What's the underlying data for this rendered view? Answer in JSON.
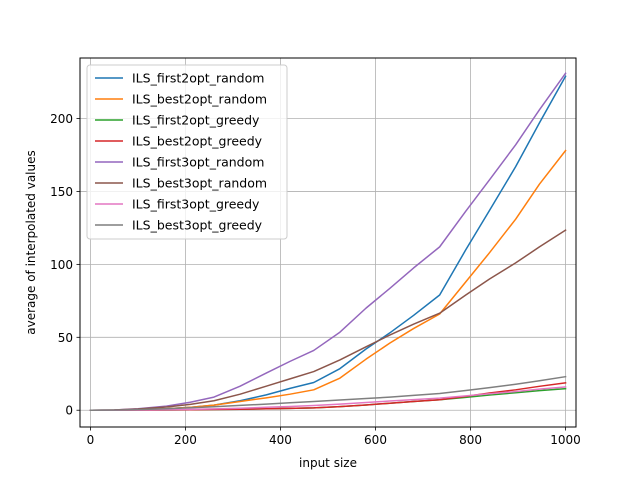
{
  "chart_data": {
    "type": "line",
    "title": "",
    "xlabel": "input size",
    "ylabel": "average of interpolated values",
    "xlim": [
      -22,
      1022
    ],
    "ylim": [
      -11.5,
      241.5
    ],
    "xticks": [
      0,
      200,
      400,
      600,
      800,
      1000
    ],
    "yticks": [
      0,
      50,
      100,
      150,
      200
    ],
    "grid": true,
    "legend_position": "top-left",
    "series": [
      {
        "name": "ILS_first2opt_random",
        "color": "#1f77b4",
        "x": [
          0,
          50,
          100,
          160,
          210,
          260,
          315,
          370,
          420,
          470,
          525,
          580,
          630,
          680,
          735,
          790,
          840,
          895,
          945,
          1000
        ],
        "y": [
          0,
          0.1,
          0.4,
          1.0,
          2.0,
          3.5,
          6.5,
          10.5,
          15.0,
          19.0,
          28.5,
          42.0,
          53.0,
          65.0,
          79.0,
          110.0,
          137.0,
          167.0,
          197.0,
          229.0
        ]
      },
      {
        "name": "ILS_best2opt_random",
        "color": "#ff7f0e",
        "x": [
          0,
          50,
          100,
          160,
          210,
          260,
          315,
          370,
          420,
          470,
          525,
          580,
          630,
          680,
          735,
          790,
          840,
          895,
          945,
          1000
        ],
        "y": [
          0,
          0.1,
          0.4,
          1.0,
          2.0,
          3.5,
          6.0,
          8.5,
          11.0,
          14.0,
          22.0,
          35.0,
          46.0,
          56.0,
          66.0,
          88.0,
          108.0,
          131.0,
          155.0,
          178.0
        ]
      },
      {
        "name": "ILS_first2opt_greedy",
        "color": "#2ca02c",
        "x": [
          0,
          50,
          100,
          160,
          210,
          260,
          315,
          370,
          420,
          470,
          525,
          580,
          630,
          680,
          735,
          790,
          840,
          895,
          945,
          1000
        ],
        "y": [
          0,
          0,
          0.1,
          0.2,
          0.3,
          0.5,
          0.7,
          1.0,
          1.3,
          1.6,
          2.5,
          3.6,
          4.8,
          6.0,
          7.2,
          8.8,
          10.4,
          12.0,
          13.4,
          14.8
        ]
      },
      {
        "name": "ILS_best2opt_greedy",
        "color": "#d62728",
        "x": [
          0,
          50,
          100,
          160,
          210,
          260,
          315,
          370,
          420,
          470,
          525,
          580,
          630,
          680,
          735,
          790,
          840,
          895,
          945,
          1000
        ],
        "y": [
          0,
          0,
          0.1,
          0.2,
          0.3,
          0.5,
          0.7,
          1.0,
          1.3,
          1.6,
          2.5,
          3.6,
          4.8,
          6.0,
          7.2,
          9.5,
          11.8,
          14.0,
          16.4,
          18.8
        ]
      },
      {
        "name": "ILS_first3opt_random",
        "color": "#9467bd",
        "x": [
          0,
          50,
          100,
          160,
          210,
          260,
          315,
          370,
          420,
          470,
          525,
          580,
          630,
          680,
          735,
          790,
          840,
          895,
          945,
          1000
        ],
        "y": [
          0,
          0.2,
          1.0,
          2.8,
          5.5,
          9.0,
          16.5,
          25.5,
          33.5,
          41.0,
          53.5,
          70.0,
          83.5,
          97.5,
          112.0,
          136.5,
          158.0,
          182.0,
          206.0,
          231.0
        ]
      },
      {
        "name": "ILS_best3opt_random",
        "color": "#8c564b",
        "x": [
          0,
          50,
          100,
          160,
          210,
          260,
          315,
          370,
          420,
          470,
          525,
          580,
          630,
          680,
          735,
          790,
          840,
          895,
          945,
          1000
        ],
        "y": [
          0,
          0.2,
          0.8,
          2.2,
          4.0,
          6.5,
          11.0,
          16.5,
          21.5,
          26.5,
          34.5,
          43.5,
          51.5,
          59.0,
          66.5,
          79.0,
          90.0,
          101.0,
          112.0,
          123.5
        ]
      },
      {
        "name": "ILS_first3opt_greedy",
        "color": "#e377c2",
        "x": [
          0,
          50,
          100,
          160,
          210,
          260,
          315,
          370,
          420,
          470,
          525,
          580,
          630,
          680,
          735,
          790,
          840,
          895,
          945,
          1000
        ],
        "y": [
          0,
          0,
          0.1,
          0.3,
          0.6,
          0.9,
          1.4,
          2.0,
          2.6,
          3.2,
          4.2,
          5.3,
          6.3,
          7.3,
          8.3,
          9.8,
          11.3,
          12.8,
          14.5,
          16.0
        ]
      },
      {
        "name": "ILS_best3opt_greedy",
        "color": "#7f7f7f",
        "x": [
          0,
          50,
          100,
          160,
          210,
          260,
          315,
          370,
          420,
          470,
          525,
          580,
          630,
          680,
          735,
          790,
          840,
          895,
          945,
          1000
        ],
        "y": [
          0,
          0.1,
          0.4,
          1.0,
          1.7,
          2.4,
          3.3,
          4.2,
          5.1,
          6.0,
          7.0,
          8.0,
          9.0,
          10.2,
          11.5,
          13.5,
          15.5,
          17.8,
          20.2,
          23.0
        ]
      }
    ]
  }
}
